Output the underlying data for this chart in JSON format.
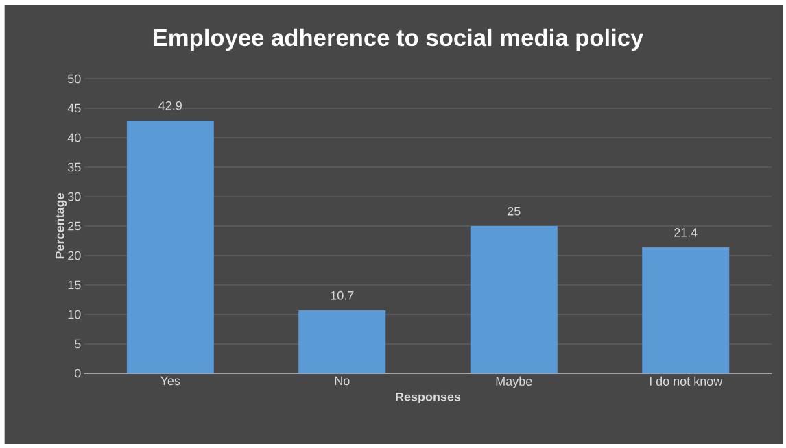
{
  "chart_data": {
    "type": "bar",
    "title": "Employee adherence to social media policy",
    "xlabel": "Responses",
    "ylabel": "Percentage",
    "categories": [
      "Yes",
      "No",
      "Maybe",
      "I do not know"
    ],
    "values": [
      42.9,
      10.7,
      25,
      21.4
    ],
    "color": "#5b9bd5",
    "ylim": [
      0,
      50
    ],
    "yticks": [
      0,
      5,
      10,
      15,
      20,
      25,
      30,
      35,
      40,
      45,
      50
    ],
    "grid": "y",
    "data_labels": true
  }
}
